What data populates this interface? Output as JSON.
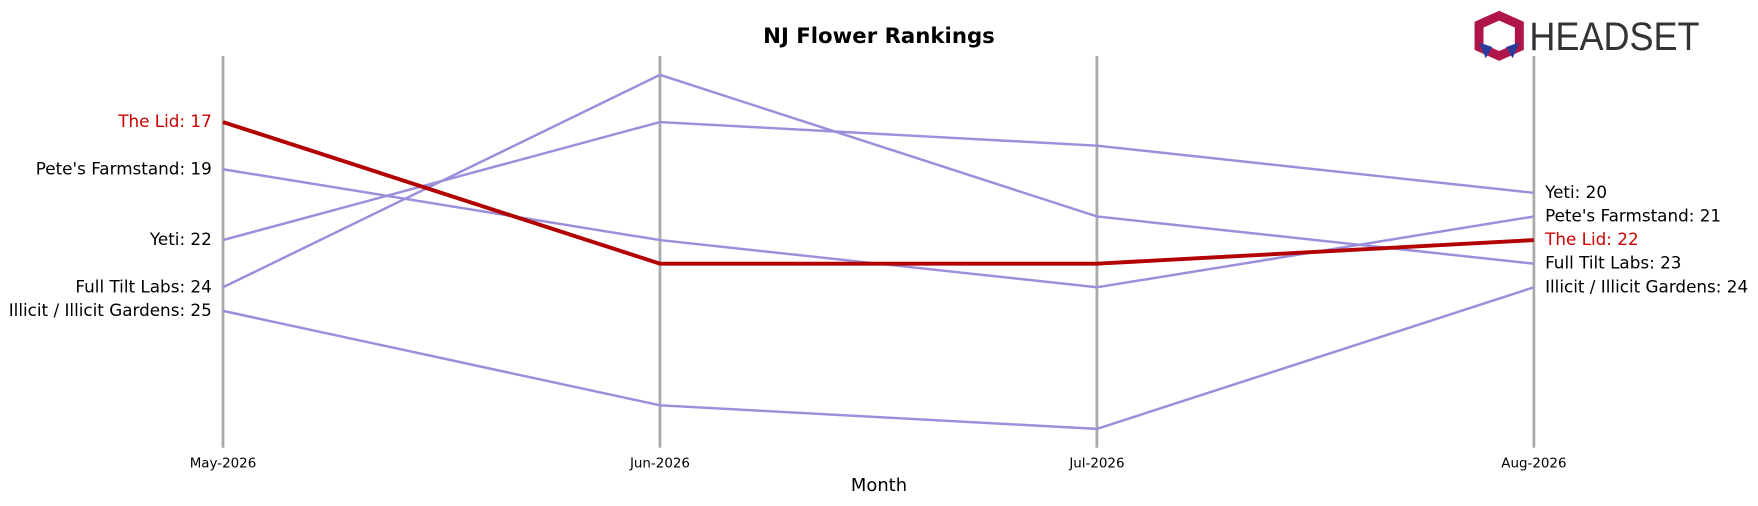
{
  "chart_data": {
    "type": "line",
    "title": "NJ Flower Rankings",
    "x_label": "Month",
    "logo": "HEADSET",
    "categories": [
      "May-2026",
      "Jun-2026",
      "Jul-2026",
      "Aug-2026"
    ],
    "ylim": [
      30.8,
      14.2
    ],
    "series": [
      {
        "name": "The Lid",
        "color": "#b30000",
        "label_color": "#cc0000",
        "values": [
          17,
          23,
          23,
          22
        ],
        "value_labels": [
          "The Lid: 17",
          null,
          null,
          "The Lid: 22"
        ]
      },
      {
        "name": "Pete's Farmstand",
        "color": "#9b8fdb",
        "label_color": "#000000",
        "values": [
          19,
          22,
          24,
          21
        ],
        "value_labels": [
          "Pete's Farmstand: 19",
          null,
          null,
          "Pete's Farmstand: 21"
        ]
      },
      {
        "name": "Yeti",
        "color": "#9b8fdb",
        "label_color": "#000000",
        "values": [
          22,
          17,
          18,
          20
        ],
        "value_labels": [
          "Yeti: 22",
          null,
          null,
          "Yeti: 20"
        ]
      },
      {
        "name": "Full Tilt Labs",
        "color": "#9b8fdb",
        "label_color": "#000000",
        "values": [
          24,
          15,
          21,
          23
        ],
        "value_labels": [
          "Full Tilt Labs: 24",
          null,
          null,
          "Full Tilt Labs: 23"
        ]
      },
      {
        "name": "Illicit / Illicit Gardens",
        "color": "#9b8fdb",
        "label_color": "#000000",
        "values": [
          25,
          29,
          30,
          24
        ],
        "value_labels": [
          "Illicit / Illicit Gardens: 25",
          null,
          null,
          "Illicit / Illicit Gardens: 24"
        ]
      }
    ]
  }
}
